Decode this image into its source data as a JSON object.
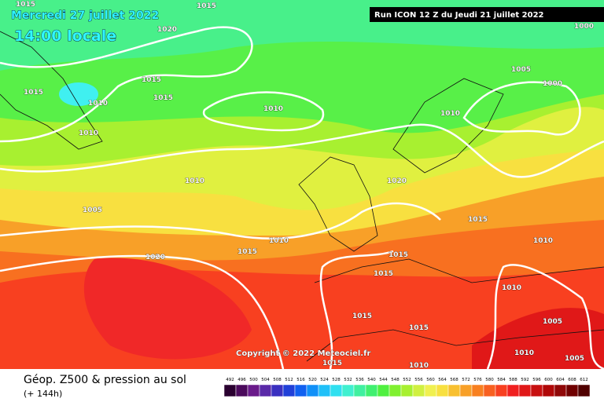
{
  "header": {
    "date": "Mercredi 27 juillet 2022",
    "time": "14:00 locale",
    "run": "Run ICON 12 Z du Jeudi 21 juillet 2022"
  },
  "copyright": "Copyright © 2022 Meteociel.fr",
  "footer": {
    "title": "Géop. Z500 & pression au sol",
    "lead": "(+ 144h)"
  },
  "isobar_labels": [
    "1015",
    "1015",
    "1020",
    "1000",
    "1015",
    "1015",
    "1010",
    "1015",
    "1010",
    "1005",
    "1000",
    "1010",
    "1010",
    "1010",
    "1005",
    "1020",
    "1010",
    "1015",
    "1020",
    "1015",
    "1015",
    "1015",
    "1010",
    "1010",
    "1015",
    "1015",
    "1010",
    "1005",
    "1005",
    "1015",
    "1010"
  ],
  "scale": {
    "values": [
      492,
      496,
      500,
      504,
      508,
      512,
      516,
      520,
      524,
      528,
      532,
      536,
      540,
      544,
      548,
      552,
      556,
      560,
      564,
      568,
      572,
      576,
      580,
      584,
      588,
      592,
      596,
      600,
      604,
      608,
      612
    ],
    "colors": [
      "#2a0030",
      "#4b0a5c",
      "#6a1a8a",
      "#5a2aa8",
      "#3a30c0",
      "#2040d8",
      "#1060f0",
      "#1090f8",
      "#20c0f8",
      "#30e0f0",
      "#40f0d0",
      "#40f0a0",
      "#40f070",
      "#50f040",
      "#80f030",
      "#a8f030",
      "#d0f040",
      "#f0f050",
      "#f8e040",
      "#f8c030",
      "#f8a028",
      "#f88020",
      "#f86020",
      "#f84020",
      "#f02020",
      "#e01818",
      "#c81010",
      "#b00808",
      "#900808",
      "#700000",
      "#500000"
    ]
  }
}
